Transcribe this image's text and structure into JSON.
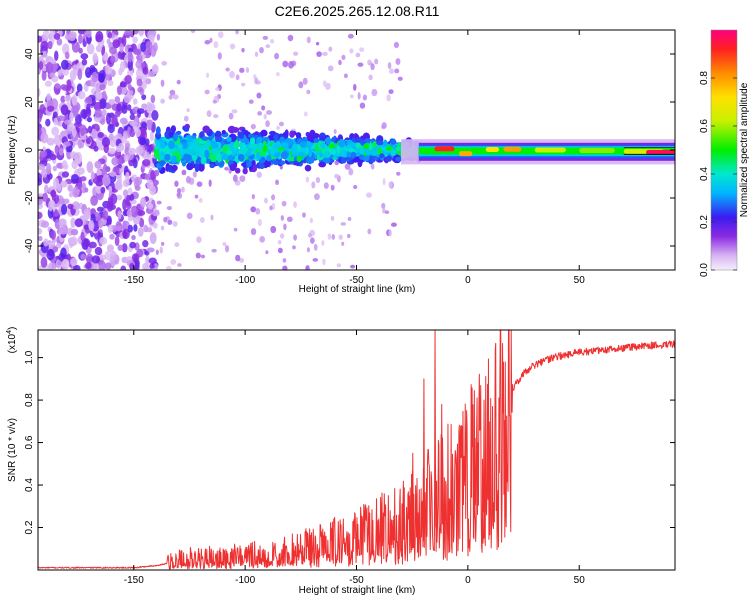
{
  "chart_data": [
    {
      "id": "spectrogram",
      "type": "heatmap",
      "title": "C2E6.2025.265.12.08.R11",
      "xlabel": "Height of straight line (km)",
      "ylabel": "Frequency (Hz)",
      "xlim": [
        -193,
        93
      ],
      "ylim": [
        -50,
        50
      ],
      "x_ticks": [
        -150,
        -100,
        -50,
        0,
        50
      ],
      "y_ticks": [
        -40,
        -20,
        0,
        20,
        40
      ],
      "colorbar": {
        "label": "Normalized spectral amplitude",
        "range": [
          0,
          1
        ],
        "ticks": [
          0.0,
          0.2,
          0.4,
          0.6,
          0.8
        ],
        "tick_labels": [
          "0.0",
          "0.2",
          "0.4",
          "0.6",
          "0.8"
        ]
      },
      "regions": [
        {
          "name": "noise",
          "x": [
            -193,
            -140
          ],
          "y": [
            -50,
            50
          ],
          "amplitude": [
            0.05,
            0.2
          ]
        },
        {
          "name": "scatter",
          "x": [
            -140,
            -22
          ],
          "y": [
            -12,
            12
          ],
          "amplitude": [
            0.15,
            0.45
          ]
        },
        {
          "name": "line",
          "x": [
            -22,
            93
          ],
          "y": [
            -3,
            2
          ],
          "amplitude": [
            0.4,
            0.9
          ]
        }
      ]
    },
    {
      "id": "snr",
      "type": "line",
      "xlabel": "Height of straight line (km)",
      "ylabel": "SNR (10 * v/v)",
      "y_scale_label": "(x10",
      "y_scale_exp": "4",
      "y_scale_tail": ")",
      "xlim": [
        -193,
        93
      ],
      "ylim": [
        0,
        1.13
      ],
      "x_ticks": [
        -150,
        -100,
        -50,
        0,
        50
      ],
      "y_ticks": [
        0.2,
        0.4,
        0.6,
        0.8,
        1.0
      ],
      "series": [
        {
          "name": "SNR",
          "color": "#ee3030",
          "x": [
            -193,
            -180,
            -165,
            -150,
            -140,
            -135,
            -130,
            -120,
            -110,
            -100,
            -90,
            -80,
            -70,
            -60,
            -50,
            -40,
            -30,
            -25,
            -20,
            -15,
            -10,
            -5,
            0,
            5,
            10,
            15,
            20,
            25,
            30,
            40,
            50,
            60,
            70,
            80,
            93
          ],
          "y": [
            0.01,
            0.01,
            0.01,
            0.01,
            0.02,
            0.03,
            0.05,
            0.06,
            0.06,
            0.07,
            0.08,
            0.1,
            0.12,
            0.15,
            0.18,
            0.22,
            0.27,
            0.3,
            0.34,
            0.4,
            0.45,
            0.48,
            0.55,
            0.65,
            0.72,
            0.78,
            0.85,
            0.92,
            0.96,
            1.0,
            1.02,
            1.03,
            1.04,
            1.05,
            1.06
          ]
        }
      ],
      "peaks": [
        {
          "x": -25,
          "y": 0.55
        },
        {
          "x": -20,
          "y": 0.9
        },
        {
          "x": -15,
          "y": 1.13
        },
        {
          "x": -12,
          "y": 0.78
        },
        {
          "x": 7,
          "y": 0.8
        },
        {
          "x": 3,
          "y": 0.62
        }
      ]
    }
  ]
}
